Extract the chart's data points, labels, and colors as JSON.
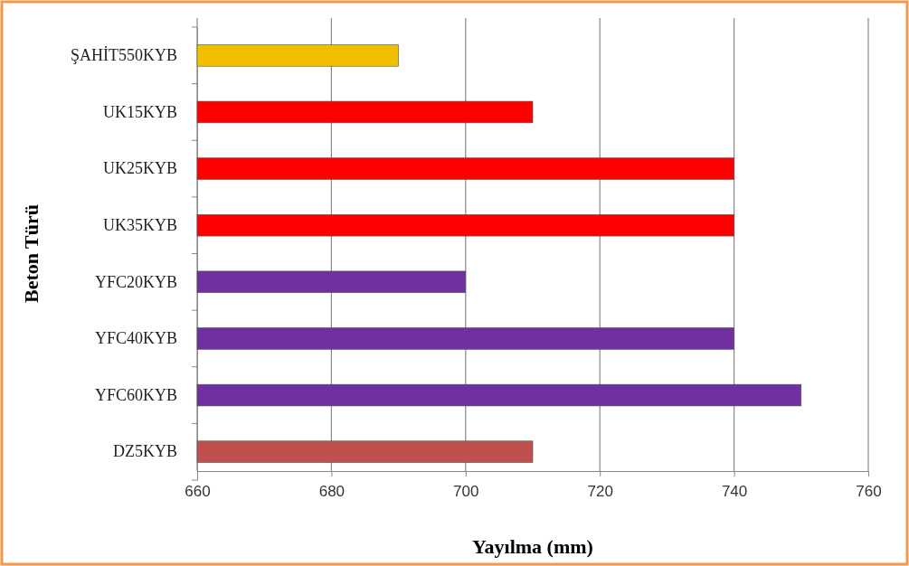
{
  "chart_data": {
    "type": "bar",
    "orientation": "horizontal",
    "xlabel": "Yayılma (mm)",
    "ylabel": "Beton Türü",
    "categories": [
      "ŞAHİT550KYB",
      "UK15KYB",
      "UK25KYB",
      "UK35KYB",
      "YFC20KYB",
      "YFC40KYB",
      "YFC60KYB",
      "DZ5KYB"
    ],
    "values": [
      690,
      710,
      740,
      740,
      700,
      740,
      750,
      710
    ],
    "colors": [
      "#f0c000",
      "#ff0000",
      "#ff0000",
      "#ff0000",
      "#7030a0",
      "#7030a0",
      "#7030a0",
      "#c0504d"
    ],
    "xlim": [
      660,
      760
    ],
    "xticks": [
      660,
      680,
      700,
      720,
      740,
      760
    ],
    "grid": "x"
  }
}
